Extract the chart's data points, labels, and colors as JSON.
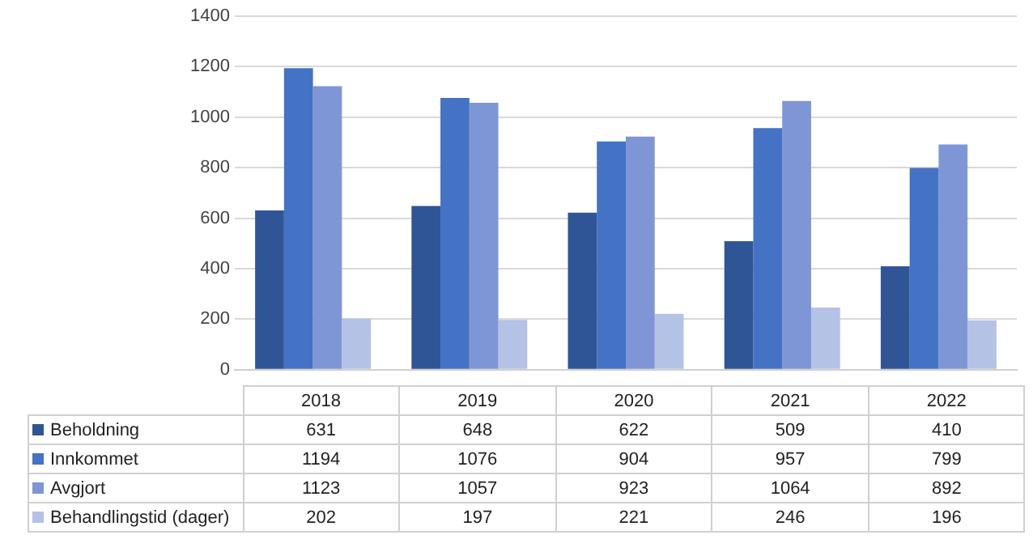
{
  "chart_data": {
    "type": "bar",
    "categories": [
      "2018",
      "2019",
      "2020",
      "2021",
      "2022"
    ],
    "series": [
      {
        "name": "Beholdning",
        "color": "#2f5597",
        "values": [
          631,
          648,
          622,
          509,
          410
        ]
      },
      {
        "name": "Innkommet",
        "color": "#4472c4",
        "values": [
          1194,
          1076,
          904,
          957,
          799
        ]
      },
      {
        "name": "Avgjort",
        "color": "#7f96d6",
        "values": [
          1123,
          1057,
          923,
          1064,
          892
        ]
      },
      {
        "name": "Behandlingstid (dager)",
        "color": "#b4c2e6",
        "values": [
          202,
          197,
          221,
          246,
          196
        ]
      }
    ],
    "ylim": [
      0,
      1400
    ],
    "yticks": [
      0,
      200,
      400,
      600,
      800,
      1000,
      1200,
      1400
    ],
    "grid": "y",
    "legend": "bottom",
    "data_labels": true
  }
}
